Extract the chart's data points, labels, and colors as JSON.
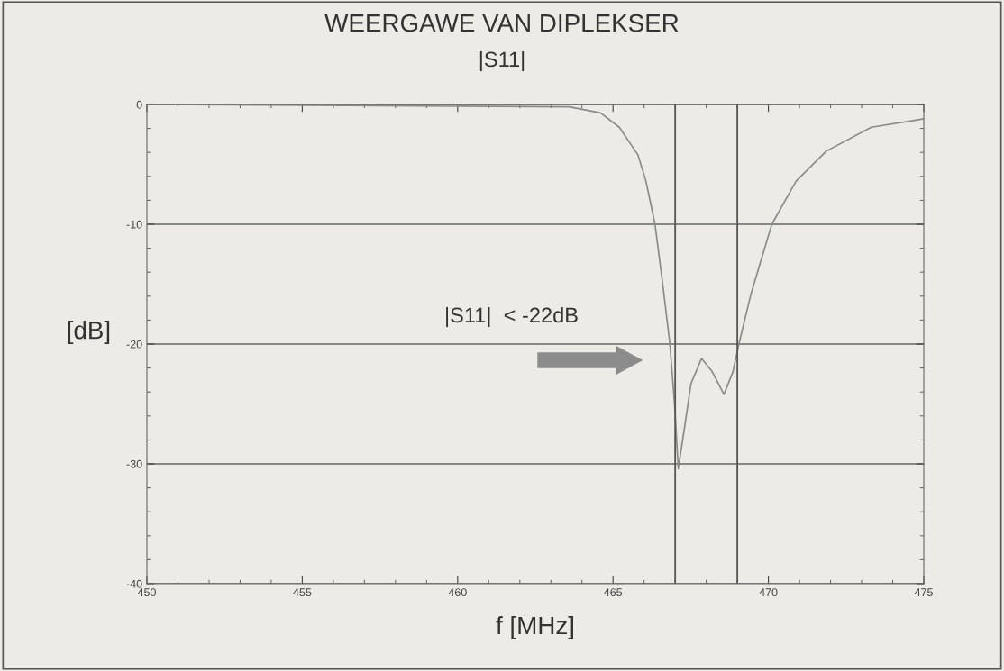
{
  "chart_data": {
    "type": "line",
    "title": "WEERGAWE VAN DIPLEKSER",
    "subtitle": "|S11|",
    "xlabel": "f [MHz]",
    "ylabel": "[dB]",
    "annotations": [
      "|S11|  < -22dB"
    ],
    "x": [
      450,
      463.6,
      464.6,
      465.2,
      465.8,
      466.06,
      466.35,
      466.59,
      466.83,
      466.98,
      467.1,
      467.27,
      467.51,
      467.85,
      468.19,
      468.57,
      468.86,
      469.05,
      469.44,
      470.11,
      470.89,
      471.86,
      473.31,
      475
    ],
    "series": [
      {
        "color": "#8a8a8a",
        "values": [
          0,
          -0.2,
          -0.7,
          -1.9,
          -4.2,
          -6.4,
          -10,
          -14.8,
          -20,
          -25,
          -30.4,
          -27.5,
          -23.3,
          -21.2,
          -22.3,
          -24.2,
          -22.3,
          -20,
          -15.8,
          -10,
          -6.4,
          -3.9,
          -1.9,
          -1.2
        ]
      }
    ],
    "xlim": [
      450,
      475
    ],
    "xticks": [
      450,
      455,
      460,
      465,
      470,
      475
    ],
    "ylim": [
      -40,
      0
    ],
    "yticks": [
      -40,
      -30,
      -20,
      -10,
      0
    ],
    "grid": "y",
    "legend": false,
    "marker": "none",
    "line_style": "solid",
    "ref_lines": [
      {
        "axis": "x",
        "value": 467,
        "color": "#555555"
      },
      {
        "axis": "x",
        "value": 469,
        "color": "#555555"
      }
    ]
  }
}
